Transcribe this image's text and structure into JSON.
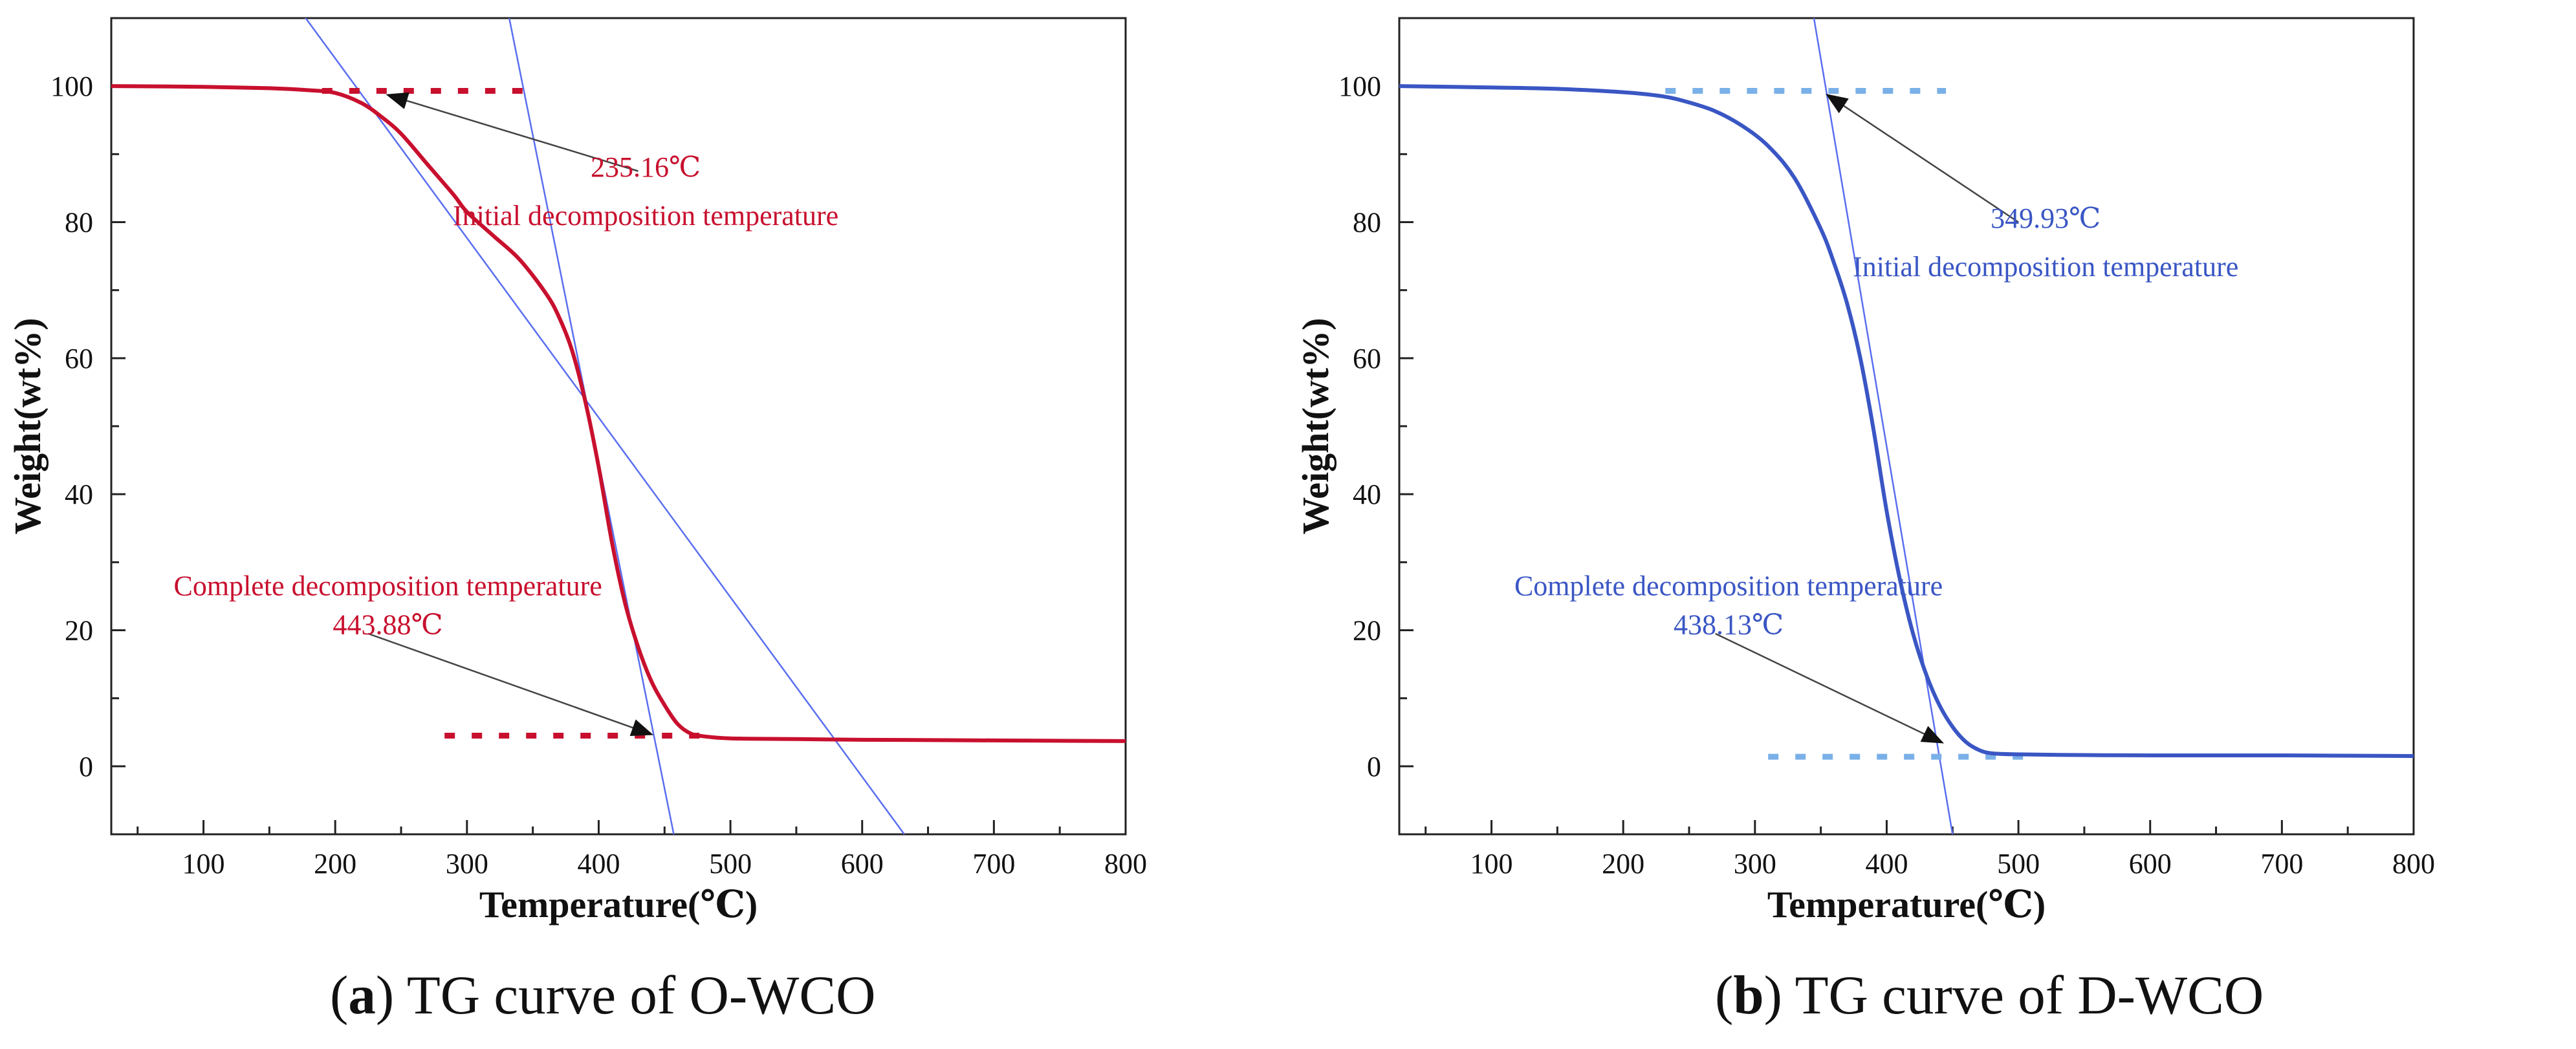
{
  "chart_data": [
    {
      "type": "line",
      "panel": "a",
      "title": "TG curve of O-WCO",
      "caption_letter": "a",
      "caption_text": "TG curve of O-WCO",
      "xlabel": "Temperature(℃)",
      "ylabel": "Weight(wt%)",
      "xlim": [
        30,
        800
      ],
      "ylim": [
        -10,
        110
      ],
      "xticks": [
        100,
        200,
        300,
        400,
        500,
        600,
        700,
        800
      ],
      "yticks": [
        0,
        20,
        40,
        60,
        80,
        100
      ],
      "grid": false,
      "colors": {
        "curve": "#c8102e",
        "dashes": "#c8102e",
        "tangents": "#5a6ff0",
        "annotation": "#c8102e"
      },
      "series": [
        {
          "name": "O-WCO",
          "x": [
            30,
            100,
            150,
            180,
            200,
            220,
            235,
            250,
            270,
            290,
            300,
            320,
            340,
            360,
            370,
            380,
            390,
            400,
            410,
            420,
            430,
            440,
            450,
            460,
            470,
            480,
            500,
            550,
            600,
            700,
            800
          ],
          "y": [
            100,
            99.9,
            99.7,
            99.4,
            99,
            97.5,
            95.5,
            93,
            88.5,
            84,
            81.5,
            78,
            74.5,
            69.5,
            66,
            61,
            53.5,
            44,
            33,
            24,
            17.5,
            12.5,
            9,
            6.2,
            4.8,
            4.4,
            4.1,
            4.0,
            3.9,
            3.8,
            3.7
          ]
        }
      ],
      "tangents": [
        {
          "x": [
            170,
            632
          ],
          "y": [
            112,
            -10
          ]
        },
        {
          "x": [
            330,
            457
          ],
          "y": [
            112,
            -10
          ]
        }
      ],
      "baselines": [
        {
          "x": [
            190,
            355
          ],
          "y": 99.3
        },
        {
          "x": [
            283,
            482
          ],
          "y": 4.5
        }
      ],
      "annotations": [
        {
          "value_label": "235.16℃",
          "text": "Initial decomposition temperature",
          "point": [
            240,
            98.7
          ],
          "from": [
            430,
            87.5
          ],
          "label_pos": [
            335,
            81
          ]
        },
        {
          "value_label": "443.88℃",
          "text": "Complete decomposition temperature",
          "point": [
            440,
            4.7
          ],
          "from": [
            225,
            19.5
          ],
          "label_pos": [
            240,
            21.5
          ]
        }
      ]
    },
    {
      "type": "line",
      "panel": "b",
      "title": "TG curve of D-WCO",
      "caption_letter": "b",
      "caption_text": "TG curve of D-WCO",
      "xlabel": "Temperature(℃)",
      "ylabel": "Weight(wt%)",
      "xlim": [
        30,
        800
      ],
      "ylim": [
        -10,
        110
      ],
      "xticks": [
        100,
        200,
        300,
        400,
        500,
        600,
        700,
        800
      ],
      "yticks": [
        0,
        20,
        40,
        60,
        80,
        100
      ],
      "grid": false,
      "colors": {
        "curve": "#3a56c4",
        "dashes": "#7ab0e8",
        "tangents": "#5a6ff0",
        "annotation": "#3a56c4"
      },
      "series": [
        {
          "name": "D-WCO",
          "x": [
            30,
            100,
            150,
            200,
            230,
            250,
            270,
            290,
            310,
            330,
            350,
            360,
            370,
            380,
            390,
            400,
            410,
            420,
            430,
            440,
            450,
            460,
            470,
            480,
            500,
            550,
            600,
            700,
            800
          ],
          "y": [
            100,
            99.8,
            99.6,
            99.1,
            98.5,
            97.6,
            96.3,
            94.2,
            91.2,
            86.5,
            79,
            74,
            68,
            60,
            49.5,
            37.5,
            27.5,
            19.5,
            13.5,
            9,
            5.8,
            3.6,
            2.4,
            1.9,
            1.75,
            1.65,
            1.6,
            1.6,
            1.5
          ]
        }
      ],
      "tangents": [
        {
          "x": [
            343,
            450
          ],
          "y": [
            112,
            -10
          ]
        }
      ],
      "baselines": [
        {
          "x": [
            232,
            445
          ],
          "y": 99.3
        },
        {
          "x": [
            310,
            508
          ],
          "y": 1.4
        }
      ],
      "annotations": [
        {
          "value_label": "349.93℃",
          "text": "Initial decomposition temperature",
          "point": [
            355,
            98.7
          ],
          "from": [
            500,
            80
          ],
          "label_pos": [
            420,
            73.5
          ]
        },
        {
          "value_label": "438.13℃",
          "text": "Complete decomposition temperature",
          "point": [
            442,
            3.5
          ],
          "from": [
            270,
            19.5
          ],
          "label_pos": [
            280,
            21.5
          ]
        }
      ]
    }
  ]
}
